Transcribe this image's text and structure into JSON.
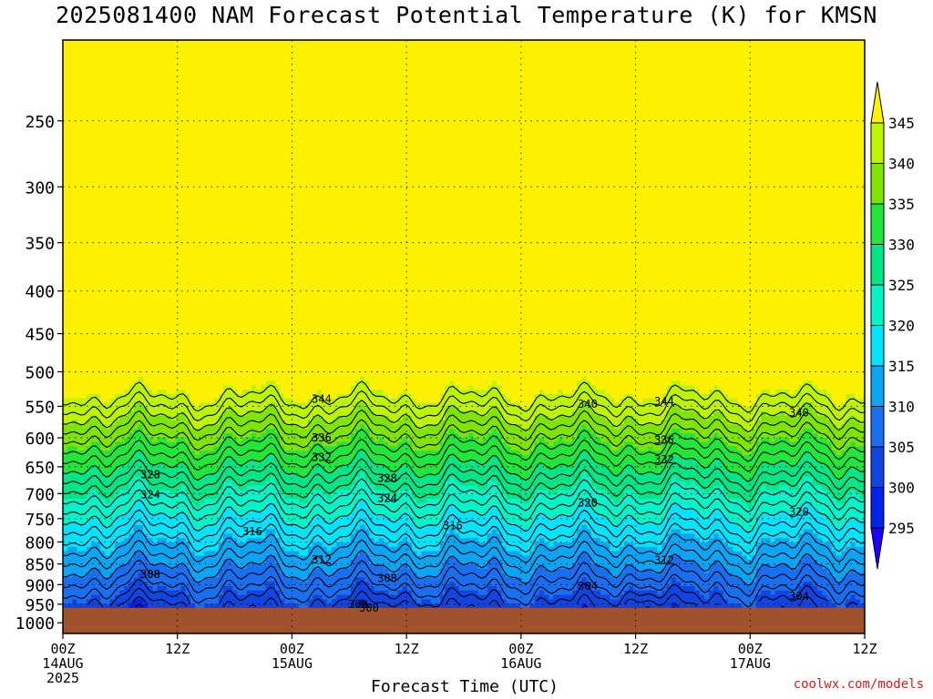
{
  "chart_data": {
    "type": "heatmap",
    "title": "2025081400 NAM Forecast Potential Temperature (K) for KMSN",
    "xlabel": "Forecast Time (UTC)",
    "ylabel": "",
    "x_ticks": [
      {
        "hour": 0,
        "lines": [
          "00Z",
          "14AUG",
          "2025"
        ]
      },
      {
        "hour": 12,
        "lines": [
          "12Z"
        ]
      },
      {
        "hour": 24,
        "lines": [
          "00Z",
          "15AUG"
        ]
      },
      {
        "hour": 36,
        "lines": [
          "12Z"
        ]
      },
      {
        "hour": 48,
        "lines": [
          "00Z",
          "16AUG"
        ]
      },
      {
        "hour": 60,
        "lines": [
          "12Z"
        ]
      },
      {
        "hour": 72,
        "lines": [
          "00Z",
          "17AUG"
        ]
      },
      {
        "hour": 84,
        "lines": [
          "12Z"
        ]
      }
    ],
    "xlim": [
      0,
      84
    ],
    "y_ticks": [
      250,
      300,
      350,
      400,
      450,
      500,
      550,
      600,
      650,
      700,
      750,
      800,
      850,
      900,
      950,
      1000
    ],
    "ylim": [
      1030,
      200
    ],
    "y_scale": "log",
    "grid": true,
    "colorbar": {
      "levels": [
        295,
        300,
        305,
        310,
        315,
        320,
        325,
        330,
        335,
        340,
        345
      ],
      "colors": [
        "#1e00ff",
        "#0022e8",
        "#1245e0",
        "#1a6ef0",
        "#0ba5f5",
        "#00e4ff",
        "#00f5c8",
        "#00e585",
        "#22e63a",
        "#7ee400",
        "#bdf400",
        "#fff200"
      ]
    },
    "contour_levels": [
      296,
      298,
      300,
      302,
      304,
      306,
      308,
      310,
      312,
      314,
      316,
      318,
      320,
      322,
      324,
      326,
      328,
      330,
      332,
      334,
      336,
      338,
      340,
      342,
      344
    ],
    "contour_label_values": [
      "344",
      "344",
      "340",
      "340",
      "336",
      "336",
      "336",
      "336",
      "332",
      "332",
      "332",
      "328",
      "328",
      "328",
      "328",
      "324",
      "324",
      "324",
      "320",
      "320",
      "320",
      "316",
      "316",
      "316",
      "312",
      "312",
      "312",
      "308",
      "308",
      "308",
      "304",
      "304",
      "304",
      "300",
      "300"
    ],
    "ground_color": "#a0522d",
    "credit": "coolwx.com/models"
  }
}
